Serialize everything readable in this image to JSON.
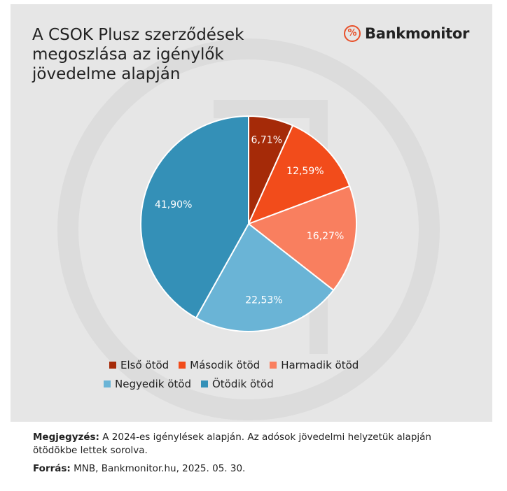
{
  "title": "A CSOK Plusz szerződések megoszlása az igénylők jövedelme alapján",
  "brand": {
    "icon": "percent-icon",
    "icon_glyph": "%",
    "name": "Bankmonitor",
    "accent": "#e8502a"
  },
  "chart_data": {
    "type": "pie",
    "title": "A CSOK Plusz szerződések megoszlása az igénylők jövedelme alapján",
    "start": "top, clockwise",
    "legend_position": "bottom",
    "slices": [
      {
        "label": "Első ötöd",
        "value": 6.71,
        "display": "6,71%",
        "color": "#a52a08"
      },
      {
        "label": "Második ötöd",
        "value": 12.59,
        "display": "12,59%",
        "color": "#f24c1b"
      },
      {
        "label": "Harmadik ötöd",
        "value": 16.27,
        "display": "16,27%",
        "color": "#f97f5f"
      },
      {
        "label": "Negyedik ötöd",
        "value": 22.53,
        "display": "22,53%",
        "color": "#6ab4d6"
      },
      {
        "label": "Ötödik ötöd",
        "value": 41.9,
        "display": "41,90%",
        "color": "#3490b7"
      }
    ]
  },
  "note": {
    "label": "Megjegyzés:",
    "text": " A 2024-es igénylések alapján. Az adósok jövedelmi helyzetük alapján ötödökbe lettek sorolva."
  },
  "source": {
    "label": "Forrás:",
    "text": " MNB, Bankmonitor.hu, 2025. 05. 30."
  }
}
